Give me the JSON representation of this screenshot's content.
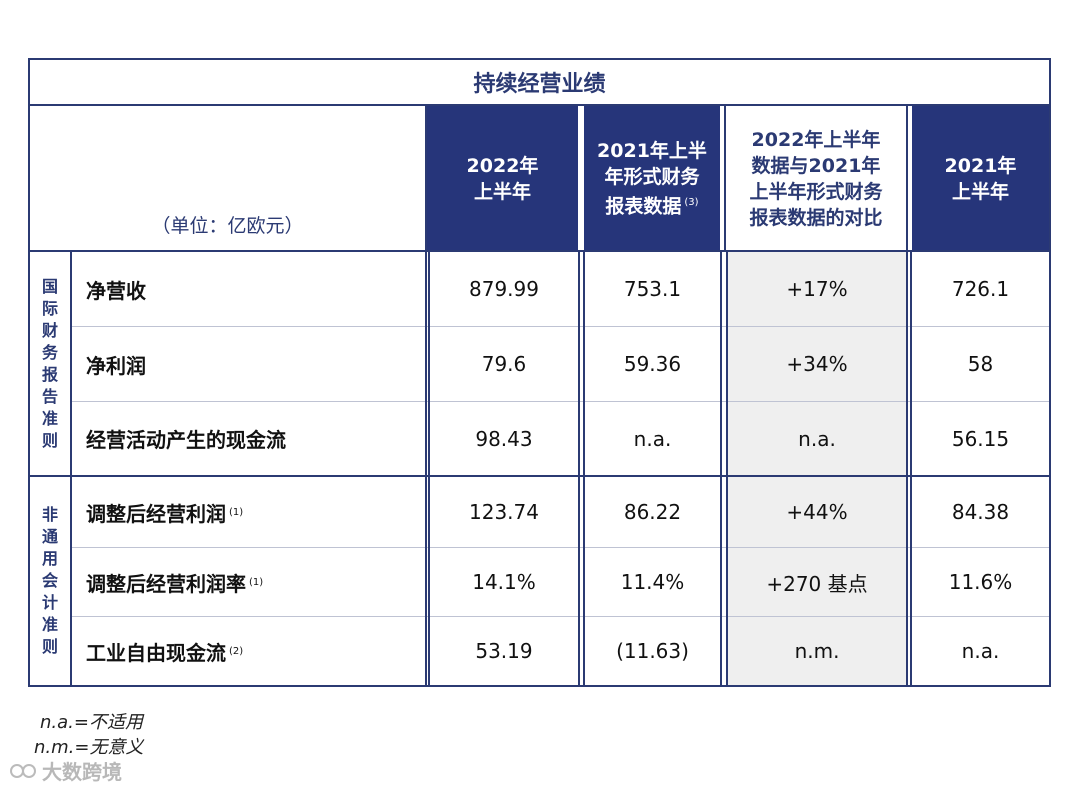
{
  "title": "持续经营业绩",
  "unit": "（单位：亿欧元）",
  "headers": [
    {
      "line1": "2022年",
      "line2": "上半年",
      "line3": "",
      "note": ""
    },
    {
      "line1": "2021年上半",
      "line2": "年形式财务",
      "line3": "报表数据",
      "note": "(3)"
    },
    {
      "line1": "2022年上半年",
      "line2": "数据与2021年",
      "line3": "上半年形式财务",
      "line4": "报表数据的对比"
    },
    {
      "line1": "2021年",
      "line2": "上半年",
      "line3": "",
      "note": ""
    }
  ],
  "groups": {
    "ifrs": [
      "国",
      "际",
      "财",
      "务",
      "报",
      "告",
      "准",
      "则"
    ],
    "non_gaap": [
      "非",
      "通",
      "用",
      "会",
      "计",
      "准",
      "则"
    ]
  },
  "rows": [
    {
      "label": "净营收",
      "note": "",
      "v": [
        "879.99",
        "753.1",
        "+17%",
        "726.1"
      ]
    },
    {
      "label": "净利润",
      "note": "",
      "v": [
        "79.6",
        "59.36",
        "+34%",
        "58"
      ]
    },
    {
      "label": "经营活动产生的现金流",
      "note": "",
      "v": [
        "98.43",
        "n.a.",
        "n.a.",
        "56.15"
      ]
    },
    {
      "label": "调整后经营利润",
      "note": "(1)",
      "v": [
        "123.74",
        "86.22",
        "+44%",
        "84.38"
      ]
    },
    {
      "label": "调整后经营利润率",
      "note": "(1)",
      "v": [
        "14.1%",
        "11.4%",
        "+270 基点",
        "11.6%"
      ]
    },
    {
      "label": "工业自由现金流",
      "note": "(2)",
      "v": [
        "53.19",
        "(11.63)",
        "n.m.",
        "n.a."
      ]
    }
  ],
  "footnotes": [
    "n.a.=不适用",
    "n.m.=无意义"
  ],
  "watermark": "大数跨境",
  "colors": {
    "navy": "#26357a",
    "shade": "#efefef"
  }
}
